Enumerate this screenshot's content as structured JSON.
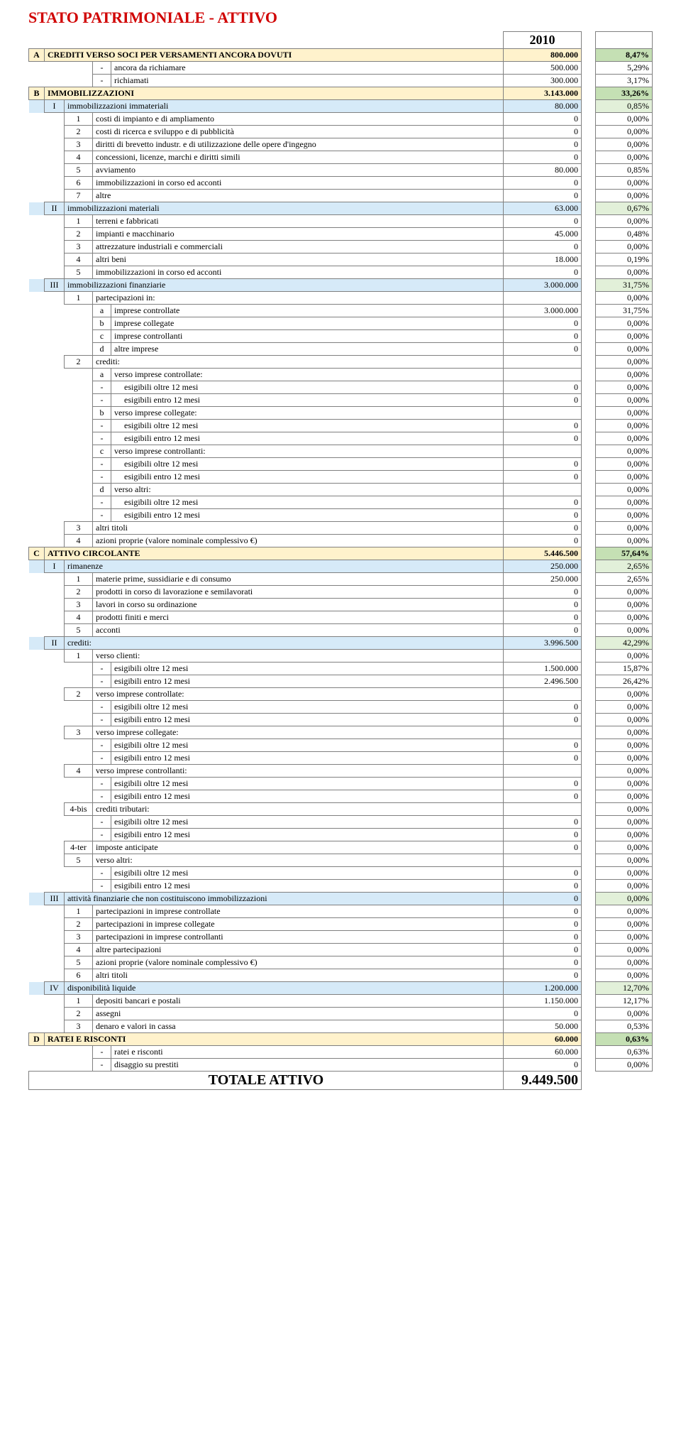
{
  "title": "STATO PATRIMONIALE - ATTIVO",
  "year": "2010",
  "total": {
    "label": "TOTALE ATTIVO",
    "value": "9.449.500"
  },
  "colors": {
    "title": "#d00000",
    "bg_yellow": "#fff2cc",
    "bg_blue": "#d6eaf8",
    "bg_green": "#e2f0d9",
    "bg_dgreen": "#c5e0b4",
    "border": "#808080"
  },
  "rows": [
    {
      "lvl": 0,
      "c0": "A",
      "desc": "CREDITI VERSO SOCI PER VERSAMENTI ANCORA DOVUTI",
      "val": "800.000",
      "pct": "8,47%",
      "bold": true,
      "bg": "yellow"
    },
    {
      "lvl": 3,
      "c3": "-",
      "desc": "ancora da richiamare",
      "val": "500.000",
      "pct": "5,29%"
    },
    {
      "lvl": 3,
      "c3": "-",
      "desc": "richiamati",
      "val": "300.000",
      "pct": "3,17%"
    },
    {
      "lvl": 0,
      "c0": "B",
      "desc": "IMMOBILIZZAZIONI",
      "val": "3.143.000",
      "pct": "33,26%",
      "bold": true,
      "bg": "yellow"
    },
    {
      "lvl": 1,
      "c1": "I",
      "desc": "immobilizzazioni immateriali",
      "val": "80.000",
      "pct": "0,85%",
      "bg": "blue"
    },
    {
      "lvl": 2,
      "c2": "1",
      "desc": "costi di impianto e di ampliamento",
      "val": "0",
      "pct": "0,00%"
    },
    {
      "lvl": 2,
      "c2": "2",
      "desc": "costi di ricerca e sviluppo e di pubblicità",
      "val": "0",
      "pct": "0,00%"
    },
    {
      "lvl": 2,
      "c2": "3",
      "desc": "diritti di brevetto industr. e di utilizzazione delle opere d'ingegno",
      "val": "0",
      "pct": "0,00%"
    },
    {
      "lvl": 2,
      "c2": "4",
      "desc": "concessioni, licenze, marchi e diritti simili",
      "val": "0",
      "pct": "0,00%"
    },
    {
      "lvl": 2,
      "c2": "5",
      "desc": "avviamento",
      "val": "80.000",
      "pct": "0,85%"
    },
    {
      "lvl": 2,
      "c2": "6",
      "desc": "immobilizzazioni in corso ed acconti",
      "val": "0",
      "pct": "0,00%"
    },
    {
      "lvl": 2,
      "c2": "7",
      "desc": "altre",
      "val": "0",
      "pct": "0,00%"
    },
    {
      "lvl": 1,
      "c1": "II",
      "desc": "immobilizzazioni materiali",
      "val": "63.000",
      "pct": "0,67%",
      "bg": "blue"
    },
    {
      "lvl": 2,
      "c2": "1",
      "desc": "terreni e fabbricati",
      "val": "0",
      "pct": "0,00%"
    },
    {
      "lvl": 2,
      "c2": "2",
      "desc": "impianti e macchinario",
      "val": "45.000",
      "pct": "0,48%"
    },
    {
      "lvl": 2,
      "c2": "3",
      "desc": "attrezzature industriali e commerciali",
      "val": "0",
      "pct": "0,00%"
    },
    {
      "lvl": 2,
      "c2": "4",
      "desc": "altri beni",
      "val": "18.000",
      "pct": "0,19%"
    },
    {
      "lvl": 2,
      "c2": "5",
      "desc": "immobilizzazioni in corso ed acconti",
      "val": "0",
      "pct": "0,00%"
    },
    {
      "lvl": 1,
      "c1": "III",
      "desc": "immobilizzazioni finanziarie",
      "val": "3.000.000",
      "pct": "31,75%",
      "bg": "blue"
    },
    {
      "lvl": 2,
      "c2": "1",
      "desc": "partecipazioni in:",
      "val": "",
      "pct": "0,00%"
    },
    {
      "lvl": 3,
      "c3": "a",
      "desc": "imprese controllate",
      "val": "3.000.000",
      "pct": "31,75%"
    },
    {
      "lvl": 3,
      "c3": "b",
      "desc": "imprese collegate",
      "val": "0",
      "pct": "0,00%"
    },
    {
      "lvl": 3,
      "c3": "c",
      "desc": "imprese controllanti",
      "val": "0",
      "pct": "0,00%"
    },
    {
      "lvl": 3,
      "c3": "d",
      "desc": "altre imprese",
      "val": "0",
      "pct": "0,00%"
    },
    {
      "lvl": 2,
      "c2": "2",
      "desc": "crediti:",
      "val": "",
      "pct": "0,00%"
    },
    {
      "lvl": 3,
      "c3": "a",
      "desc": "verso imprese controllate:",
      "val": "",
      "pct": "0,00%"
    },
    {
      "lvl": 4,
      "c3": "-",
      "desc": "esigibili oltre 12 mesi",
      "val": "0",
      "pct": "0,00%",
      "descpad": true
    },
    {
      "lvl": 4,
      "c3": "-",
      "desc": "esigibili entro 12 mesi",
      "val": "0",
      "pct": "0,00%",
      "descpad": true
    },
    {
      "lvl": 3,
      "c3": "b",
      "desc": "verso imprese collegate:",
      "val": "",
      "pct": "0,00%"
    },
    {
      "lvl": 4,
      "c3": "-",
      "desc": "esigibili oltre 12 mesi",
      "val": "0",
      "pct": "0,00%",
      "descpad": true
    },
    {
      "lvl": 4,
      "c3": "-",
      "desc": "esigibili entro 12 mesi",
      "val": "0",
      "pct": "0,00%",
      "descpad": true
    },
    {
      "lvl": 3,
      "c3": "c",
      "desc": "verso imprese controllanti:",
      "val": "",
      "pct": "0,00%"
    },
    {
      "lvl": 4,
      "c3": "-",
      "desc": "esigibili oltre 12 mesi",
      "val": "0",
      "pct": "0,00%",
      "descpad": true
    },
    {
      "lvl": 4,
      "c3": "-",
      "desc": "esigibili entro 12 mesi",
      "val": "0",
      "pct": "0,00%",
      "descpad": true
    },
    {
      "lvl": 3,
      "c3": "d",
      "desc": "verso altri:",
      "val": "",
      "pct": "0,00%"
    },
    {
      "lvl": 4,
      "c3": "-",
      "desc": "esigibili oltre 12 mesi",
      "val": "0",
      "pct": "0,00%",
      "descpad": true
    },
    {
      "lvl": 4,
      "c3": "-",
      "desc": "esigibili entro 12 mesi",
      "val": "0",
      "pct": "0,00%",
      "descpad": true
    },
    {
      "lvl": 2,
      "c2": "3",
      "desc": "altri titoli",
      "val": "0",
      "pct": "0,00%"
    },
    {
      "lvl": 2,
      "c2": "4",
      "desc": "azioni proprie (valore nominale complessivo €)",
      "val": "0",
      "pct": "0,00%"
    },
    {
      "lvl": 0,
      "c0": "C",
      "desc": "ATTIVO CIRCOLANTE",
      "val": "5.446.500",
      "pct": "57,64%",
      "bold": true,
      "bg": "yellow"
    },
    {
      "lvl": 1,
      "c1": "I",
      "desc": "rimanenze",
      "val": "250.000",
      "pct": "2,65%",
      "bg": "blue"
    },
    {
      "lvl": 2,
      "c2": "1",
      "desc": "materie prime, sussidiarie e di consumo",
      "val": "250.000",
      "pct": "2,65%"
    },
    {
      "lvl": 2,
      "c2": "2",
      "desc": "prodotti in corso di lavorazione e semilavorati",
      "val": "0",
      "pct": "0,00%"
    },
    {
      "lvl": 2,
      "c2": "3",
      "desc": "lavori in corso su ordinazione",
      "val": "0",
      "pct": "0,00%"
    },
    {
      "lvl": 2,
      "c2": "4",
      "desc": "prodotti finiti e merci",
      "val": "0",
      "pct": "0,00%"
    },
    {
      "lvl": 2,
      "c2": "5",
      "desc": "acconti",
      "val": "0",
      "pct": "0,00%"
    },
    {
      "lvl": 1,
      "c1": "II",
      "desc": "crediti:",
      "val": "3.996.500",
      "pct": "42,29%",
      "bg": "blue"
    },
    {
      "lvl": 2,
      "c2": "1",
      "desc": "verso clienti:",
      "val": "",
      "pct": "0,00%"
    },
    {
      "lvl": 3,
      "c3": "-",
      "desc": "esigibili oltre 12 mesi",
      "val": "1.500.000",
      "pct": "15,87%"
    },
    {
      "lvl": 3,
      "c3": "-",
      "desc": "esigibili entro 12 mesi",
      "val": "2.496.500",
      "pct": "26,42%"
    },
    {
      "lvl": 2,
      "c2": "2",
      "desc": "verso imprese controllate:",
      "val": "",
      "pct": "0,00%"
    },
    {
      "lvl": 3,
      "c3": "-",
      "desc": "esigibili oltre 12 mesi",
      "val": "0",
      "pct": "0,00%"
    },
    {
      "lvl": 3,
      "c3": "-",
      "desc": "esigibili entro 12 mesi",
      "val": "0",
      "pct": "0,00%"
    },
    {
      "lvl": 2,
      "c2": "3",
      "desc": "verso imprese collegate:",
      "val": "",
      "pct": "0,00%"
    },
    {
      "lvl": 3,
      "c3": "-",
      "desc": "esigibili oltre 12 mesi",
      "val": "0",
      "pct": "0,00%"
    },
    {
      "lvl": 3,
      "c3": "-",
      "desc": "esigibili entro 12 mesi",
      "val": "0",
      "pct": "0,00%"
    },
    {
      "lvl": 2,
      "c2": "4",
      "desc": "verso imprese controllanti:",
      "val": "",
      "pct": "0,00%"
    },
    {
      "lvl": 3,
      "c3": "-",
      "desc": "esigibili oltre 12 mesi",
      "val": "0",
      "pct": "0,00%"
    },
    {
      "lvl": 3,
      "c3": "-",
      "desc": "esigibili entro 12 mesi",
      "val": "0",
      "pct": "0,00%"
    },
    {
      "lvl": 2,
      "c2": "4-bis",
      "desc": "crediti tributari:",
      "val": "",
      "pct": "0,00%"
    },
    {
      "lvl": 3,
      "c3": "-",
      "desc": "esigibili oltre 12 mesi",
      "val": "0",
      "pct": "0,00%"
    },
    {
      "lvl": 3,
      "c3": "-",
      "desc": "esigibili entro 12 mesi",
      "val": "0",
      "pct": "0,00%"
    },
    {
      "lvl": 2,
      "c2": "4-ter",
      "desc": "imposte anticipate",
      "val": "0",
      "pct": "0,00%"
    },
    {
      "lvl": 2,
      "c2": "5",
      "desc": "verso altri:",
      "val": "",
      "pct": "0,00%"
    },
    {
      "lvl": 3,
      "c3": "-",
      "desc": "esigibili oltre 12 mesi",
      "val": "0",
      "pct": "0,00%"
    },
    {
      "lvl": 3,
      "c3": "-",
      "desc": "esigibili entro 12 mesi",
      "val": "0",
      "pct": "0,00%"
    },
    {
      "lvl": 1,
      "c1": "III",
      "desc": "attività finanziarie che non costituiscono immobilizzazioni",
      "val": "0",
      "pct": "0,00%",
      "bg": "blue"
    },
    {
      "lvl": 2,
      "c2": "1",
      "desc": "partecipazioni in imprese controllate",
      "val": "0",
      "pct": "0,00%"
    },
    {
      "lvl": 2,
      "c2": "2",
      "desc": "partecipazioni in imprese collegate",
      "val": "0",
      "pct": "0,00%"
    },
    {
      "lvl": 2,
      "c2": "3",
      "desc": "partecipazioni in imprese controllanti",
      "val": "0",
      "pct": "0,00%"
    },
    {
      "lvl": 2,
      "c2": "4",
      "desc": "altre partecipazioni",
      "val": "0",
      "pct": "0,00%"
    },
    {
      "lvl": 2,
      "c2": "5",
      "desc": "azioni proprie (valore nominale complessivo €)",
      "val": "0",
      "pct": "0,00%"
    },
    {
      "lvl": 2,
      "c2": "6",
      "desc": "altri titoli",
      "val": "0",
      "pct": "0,00%"
    },
    {
      "lvl": 1,
      "c1": "IV",
      "desc": "disponibilità liquide",
      "val": "1.200.000",
      "pct": "12,70%",
      "bg": "blue"
    },
    {
      "lvl": 2,
      "c2": "1",
      "desc": "depositi bancari e postali",
      "val": "1.150.000",
      "pct": "12,17%"
    },
    {
      "lvl": 2,
      "c2": "2",
      "desc": "assegni",
      "val": "0",
      "pct": "0,00%"
    },
    {
      "lvl": 2,
      "c2": "3",
      "desc": "denaro e valori in cassa",
      "val": "50.000",
      "pct": "0,53%"
    },
    {
      "lvl": 0,
      "c0": "D",
      "desc": "RATEI  E  RISCONTI",
      "val": "60.000",
      "pct": "0,63%",
      "bold": true,
      "bg": "yellow"
    },
    {
      "lvl": 3,
      "c3": "-",
      "desc": "ratei e risconti",
      "val": "60.000",
      "pct": "0,63%"
    },
    {
      "lvl": 3,
      "c3": "-",
      "desc": "disaggio su prestiti",
      "val": "0",
      "pct": "0,00%"
    }
  ]
}
